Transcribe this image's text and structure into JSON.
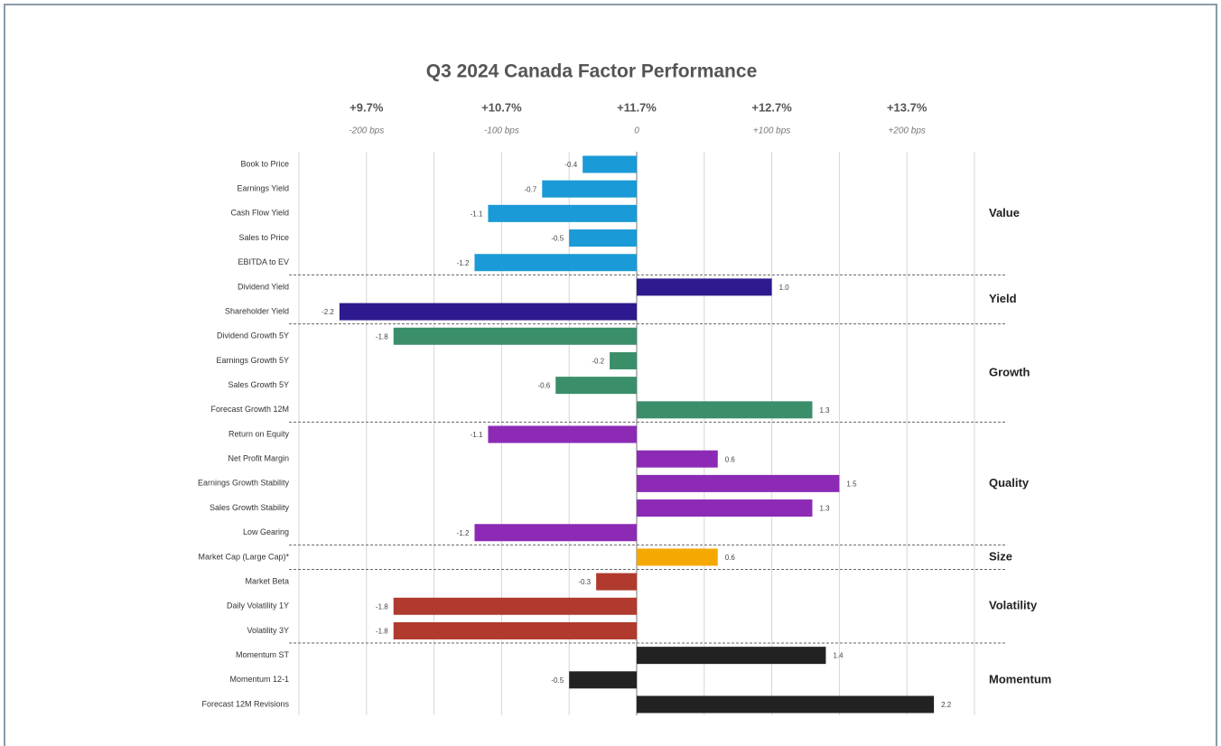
{
  "chart_data": {
    "type": "bar",
    "orientation": "horizontal",
    "title": "Q3 2024 Canada Factor Performance",
    "xlim": [
      -2.5,
      2.5
    ],
    "xticks": [
      {
        "value": -2,
        "label": "+9.7%"
      },
      {
        "value": -1,
        "label": "+10.7%"
      },
      {
        "value": 0,
        "label": "+11.7%"
      },
      {
        "value": 1,
        "label": "+12.7%"
      },
      {
        "value": 2,
        "label": "+13.7%"
      }
    ],
    "xtick_sublabels": [
      "-200 bps",
      "-100 bps",
      "0",
      "+100 bps",
      "+200 bps"
    ],
    "minor_xticks": [
      -2.5,
      -1.5,
      -0.5,
      0.5,
      1.5,
      2.5
    ],
    "grid": true,
    "series": [
      {
        "name": "Value",
        "color": "#1a9ad6",
        "categories": [
          "Book to Price",
          "Earnings Yield",
          "Cash Flow Yield",
          "Sales to Price",
          "EBITDA to EV"
        ],
        "values": [
          -0.4,
          -0.7,
          -1.1,
          -0.5,
          -1.2
        ]
      },
      {
        "name": "Yield",
        "color": "#2e1a8e",
        "categories": [
          "Dividend Yield",
          "Shareholder Yield"
        ],
        "values": [
          1.0,
          -2.2
        ],
        "value_labels": [
          "1.0",
          "-2.2"
        ]
      },
      {
        "name": "Growth",
        "color": "#3a8f6a",
        "categories": [
          "Dividend Growth 5Y",
          "Earnings Growth 5Y",
          "Sales Growth 5Y",
          "Forecast Growth 12M"
        ],
        "values": [
          -1.8,
          -0.2,
          -0.6,
          1.3
        ]
      },
      {
        "name": "Quality",
        "color": "#8c2ab5",
        "categories": [
          "Return on Equity",
          "Net Profit Margin",
          "Earnings Growth Stability",
          "Sales Growth Stability",
          "Low Gearing"
        ],
        "values": [
          -1.1,
          0.6,
          1.5,
          1.3,
          -1.2
        ]
      },
      {
        "name": "Size",
        "color": "#f5a800",
        "categories": [
          "Market Cap (Large Cap)*"
        ],
        "values": [
          0.6
        ]
      },
      {
        "name": "Volatility",
        "color": "#b03a2e",
        "categories": [
          "Market Beta",
          "Daily Volatility 1Y",
          "Volatility 3Y"
        ],
        "values": [
          -0.3,
          -1.8,
          -1.8
        ]
      },
      {
        "name": "Momentum",
        "color": "#222222",
        "categories": [
          "Momentum ST",
          "Momentum 12-1",
          "Forecast 12M Revisions"
        ],
        "values": [
          1.4,
          -0.5,
          2.2
        ]
      }
    ]
  }
}
